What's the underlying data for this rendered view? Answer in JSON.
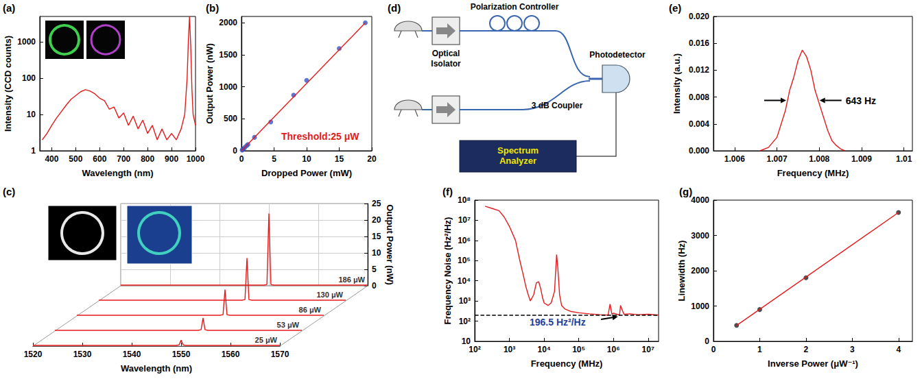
{
  "chart_data": [
    {
      "panel": "(a)",
      "type": "line",
      "x_label": "Wavelength (nm)",
      "y_label": "Intensity (CCD counts)",
      "x": [
        360,
        380,
        400,
        420,
        440,
        460,
        480,
        500,
        520,
        540,
        560,
        580,
        600,
        620,
        640,
        660,
        680,
        700,
        720,
        740,
        760,
        780,
        800,
        820,
        840,
        860,
        880,
        900,
        920,
        940,
        955,
        965,
        970,
        975,
        980,
        985,
        990,
        1000
      ],
      "values": [
        2,
        3,
        5,
        8,
        12,
        18,
        26,
        33,
        42,
        48,
        44,
        37,
        28,
        24,
        14,
        16,
        8,
        11,
        5,
        9,
        4,
        7,
        3,
        5,
        2,
        4,
        2,
        3,
        2,
        4,
        10,
        100,
        1000,
        5000,
        800,
        50,
        10,
        5
      ],
      "color": "#e41a1c",
      "xlim": [
        350,
        1000
      ],
      "xticks": [
        400,
        500,
        600,
        700,
        800,
        900,
        1000
      ],
      "ylim": [
        1,
        5000
      ],
      "yticks": [
        1,
        10,
        100,
        1000
      ],
      "log": "y",
      "grid": false
    },
    {
      "panel": "(b)",
      "type": "scatter",
      "x_label": "Dropped Power (mW)",
      "y_label": "Output Power (nW)",
      "annotation": "Threshold:25 μW",
      "series": [
        {
          "type": "scatter",
          "color": "#3355cc",
          "marker": "circle",
          "x": [
            0.1,
            0.2,
            0.3,
            0.5,
            0.8,
            1,
            2,
            4.5,
            8,
            10,
            15,
            19
          ],
          "values": [
            10,
            20,
            30,
            50,
            80,
            100,
            210,
            450,
            870,
            1100,
            1600,
            2000
          ]
        },
        {
          "type": "line",
          "color": "#e41a1c",
          "x": [
            0,
            19
          ],
          "values": [
            0,
            2000
          ]
        }
      ],
      "xlim": [
        0,
        20
      ],
      "xticks": [
        0,
        5,
        10,
        15,
        20
      ],
      "ylim": [
        0,
        2100
      ],
      "yticks": [
        0,
        500,
        1000,
        1500,
        2000
      ],
      "grid": false
    },
    {
      "panel": "(c)",
      "type": "line",
      "x_label": "Wavelength (nm)",
      "y_label": "Output Power (nW)",
      "x": [
        1520,
        1530,
        1540,
        1549,
        1549.6,
        1550,
        1550.4,
        1551,
        1560,
        1570
      ],
      "series": [
        {
          "name": "25 μW",
          "color": "#e41a1c",
          "values": [
            0.2,
            0.2,
            0.2,
            0.2,
            0.4,
            1.8,
            0.4,
            0.2,
            0.2,
            0.2
          ]
        },
        {
          "name": "53 μW",
          "color": "#e41a1c",
          "values": [
            0.2,
            0.2,
            0.2,
            0.2,
            0.4,
            4,
            0.4,
            0.2,
            0.2,
            0.2
          ]
        },
        {
          "name": "86 μW",
          "color": "#e41a1c",
          "values": [
            0.2,
            0.2,
            0.2,
            0.2,
            0.4,
            8,
            0.4,
            0.2,
            0.2,
            0.2
          ]
        },
        {
          "name": "130 μW",
          "color": "#e41a1c",
          "values": [
            0.2,
            0.2,
            0.2,
            0.2,
            0.4,
            13,
            0.4,
            0.2,
            0.2,
            0.2
          ]
        },
        {
          "name": "186 μW",
          "color": "#e41a1c",
          "values": [
            0.2,
            0.2,
            0.2,
            0.2,
            0.4,
            22,
            0.4,
            0.2,
            0.2,
            0.2
          ]
        }
      ],
      "xlim": [
        1520,
        1570
      ],
      "xticks": [
        1520,
        1530,
        1540,
        1550,
        1560,
        1570
      ],
      "ylim": [
        0,
        25
      ],
      "yticks": [
        0,
        5,
        10,
        15,
        20,
        25
      ],
      "grid": true
    },
    {
      "panel": "(e)",
      "type": "line",
      "x_label": "Frequency (MHz)",
      "y_label": "Intensity (a.u.)",
      "annotation": "643 Hz",
      "x": [
        1.0066,
        1.0068,
        1.007,
        1.0072,
        1.0073,
        1.0074,
        1.0075,
        1.0076,
        1.0077,
        1.0078,
        1.0079,
        1.008,
        1.0081,
        1.0082,
        1.0083,
        1.0084,
        1.0085,
        1.0086
      ],
      "values": [
        0,
        0.0005,
        0.002,
        0.006,
        0.009,
        0.011,
        0.0135,
        0.015,
        0.014,
        0.012,
        0.009,
        0.007,
        0.005,
        0.003,
        0.0015,
        0.0008,
        0.0003,
        0
      ],
      "color": "#e41a1c",
      "xlim": [
        1.0055,
        1.0102
      ],
      "xticks": [
        1.006,
        1.007,
        1.008,
        1.009,
        1.01
      ],
      "ylim": [
        0,
        0.02
      ],
      "yticks": [
        {
          "value": 0,
          "label": "0.000"
        },
        {
          "value": 0.004,
          "label": "0.004"
        },
        {
          "value": 0.008,
          "label": "0.008"
        },
        {
          "value": 0.012,
          "label": "0.012"
        },
        {
          "value": 0.016,
          "label": "0.016"
        },
        {
          "value": 0.02,
          "label": "0.020"
        }
      ],
      "grid": false
    },
    {
      "panel": "(f)",
      "type": "line",
      "x_label": "Frequency (MHz)",
      "y_label": "Frequency Noise (Hz²/Hz)",
      "annotation": "196.5 Hz²/Hz",
      "series": [
        {
          "type": "line",
          "color": "#e41a1c",
          "x": [
            200,
            300,
            500,
            700,
            1000,
            1500,
            2000,
            2500,
            3000,
            3500,
            4000,
            5000,
            6000,
            7000,
            8000,
            9000,
            10000,
            13000,
            16000,
            20000,
            23000,
            25000,
            28000,
            32000,
            40000,
            60000,
            100000,
            200000,
            400000,
            700000,
            800000,
            900000,
            1000000,
            1500000,
            1600000,
            2000000,
            3000000,
            5000000,
            10000000,
            20000000
          ],
          "values": [
            50000000,
            40000000,
            30000000,
            15000000,
            5000000,
            1000000,
            100000,
            20000,
            5000,
            2000,
            1000,
            2000,
            8000,
            9000,
            4000,
            1500,
            800,
            600,
            800,
            3000,
            200000,
            40000,
            2000,
            600,
            400,
            300,
            260,
            230,
            210,
            200,
            700,
            220,
            250,
            200,
            600,
            220,
            230,
            210,
            220,
            200
          ]
        },
        {
          "type": "line",
          "color": "#000000",
          "line_style": "dashed",
          "x": [
            100,
            20000000
          ],
          "values": [
            196.5,
            196.5
          ]
        }
      ],
      "xlim": [
        100,
        20000000
      ],
      "xticks": [
        {
          "value": 100,
          "label": "10²"
        },
        {
          "value": 1000,
          "label": "10³"
        },
        {
          "value": 10000,
          "label": "10⁴"
        },
        {
          "value": 100000,
          "label": "10⁵"
        },
        {
          "value": 1000000,
          "label": "10⁶"
        },
        {
          "value": 10000000,
          "label": "10⁷"
        }
      ],
      "ylim": [
        10,
        100000000
      ],
      "yticks": [
        10,
        {
          "value": 100,
          "label": "10²"
        },
        {
          "value": 1000,
          "label": "10³"
        },
        {
          "value": 10000,
          "label": "10⁴"
        },
        {
          "value": 100000,
          "label": "10⁵"
        },
        {
          "value": 1000000,
          "label": "10⁶"
        },
        {
          "value": 10000000,
          "label": "10⁷"
        },
        {
          "value": 100000000,
          "label": "10⁸"
        }
      ],
      "log": true,
      "grid": false
    },
    {
      "panel": "(g)",
      "type": "scatter",
      "x_label": "Inverse Power (μW⁻¹)",
      "y_label": "Linewidth (Hz)",
      "series": [
        {
          "type": "scatter",
          "color": "#222222",
          "marker": "circle",
          "x": [
            0.5,
            1,
            2,
            4
          ],
          "values": [
            450,
            900,
            1800,
            3650
          ]
        },
        {
          "type": "line",
          "color": "#e41a1c",
          "x": [
            0.5,
            4
          ],
          "values": [
            450,
            3650
          ]
        }
      ],
      "xlim": [
        0,
        4.3
      ],
      "xticks": [
        0,
        1,
        2,
        3,
        4
      ],
      "ylim": [
        0,
        4000
      ],
      "yticks": [
        0,
        1000,
        2000,
        3000,
        4000
      ],
      "grid": false
    }
  ],
  "diagram": {
    "panel": "(d)",
    "nodes": [
      {
        "label": "Optical Isolator"
      },
      {
        "label": "Polarization Controller"
      },
      {
        "label": "Photodetector"
      },
      {
        "label": "3 dB Coupler"
      },
      {
        "label": "Spectrum Analyzer"
      }
    ]
  }
}
